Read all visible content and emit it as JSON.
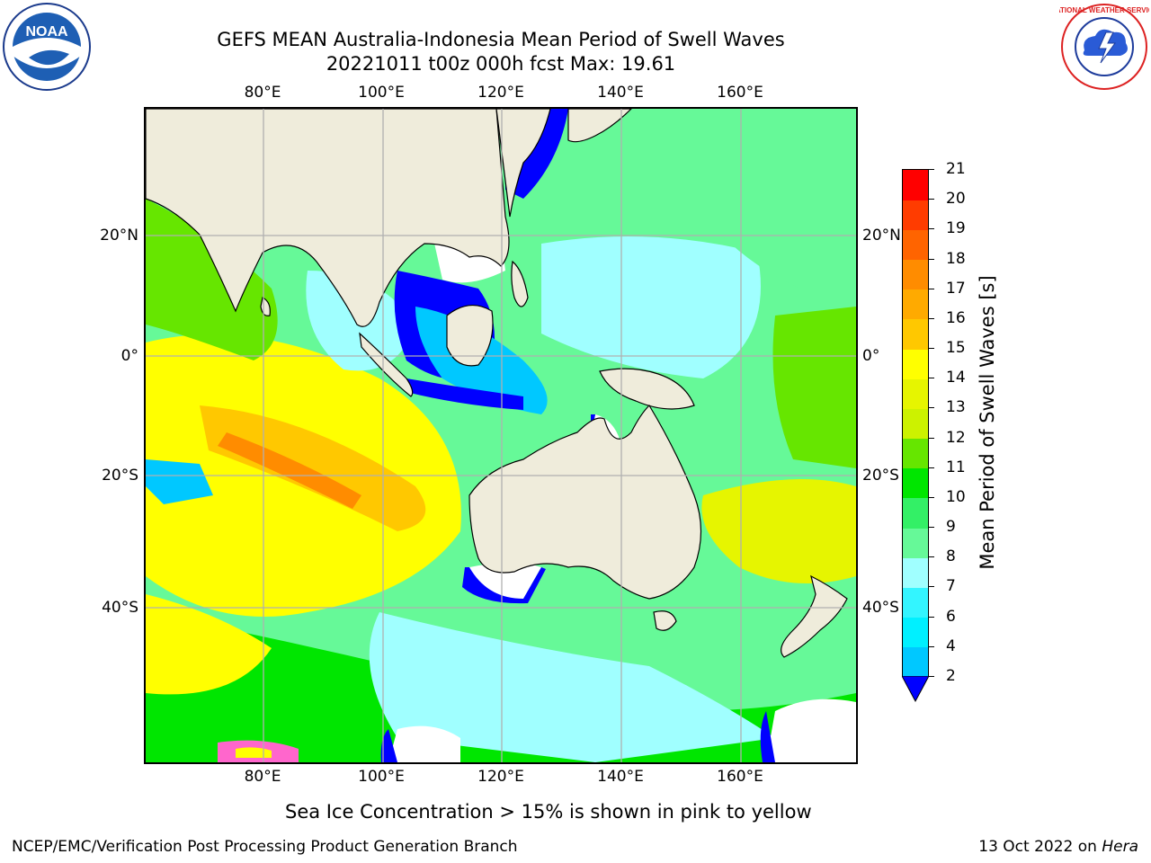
{
  "title": {
    "line1": "GEFS MEAN Australia-Indonesia Mean Period of Swell Waves",
    "line2": "20221011 t00z 000h fcst   Max: 19.61"
  },
  "map": {
    "lon_labels": [
      "80°E",
      "100°E",
      "120°E",
      "140°E",
      "160°E"
    ],
    "lat_labels": [
      "20°N",
      "0°",
      "20°S",
      "40°S"
    ],
    "field_colors": {
      "land": "#efecdb",
      "ice_free_low": "#ffffff",
      "sea_ice": "#ff66cc"
    }
  },
  "colorbar": {
    "label": "Mean Period of Swell Waves [s]",
    "ticks": [
      "2",
      "4",
      "6",
      "7",
      "8",
      "9",
      "10",
      "11",
      "12",
      "13",
      "14",
      "15",
      "16",
      "17",
      "18",
      "19",
      "20",
      "21"
    ],
    "colors": [
      "#0074ff",
      "#00c8ff",
      "#00f0ff",
      "#33f5ff",
      "#a0ffff",
      "#66f998",
      "#33f066",
      "#00e600",
      "#66e600",
      "#ccf200",
      "#e6f500",
      "#ffff00",
      "#ffc800",
      "#ffaa00",
      "#ff8c00",
      "#ff6400",
      "#ff3c00",
      "#ff0000"
    ],
    "under_color": "#0000ff"
  },
  "note": "Sea Ice Concentration > 15% is shown in pink to yellow",
  "footer": {
    "left": "NCEP/EMC/Verification Post Processing Product Generation Branch",
    "right_date": "13 Oct 2022 on ",
    "right_host": "Hera"
  },
  "logos": {
    "noaa_text": "NOAA",
    "nws_text": "NATIONAL WEATHER SERVICE"
  }
}
